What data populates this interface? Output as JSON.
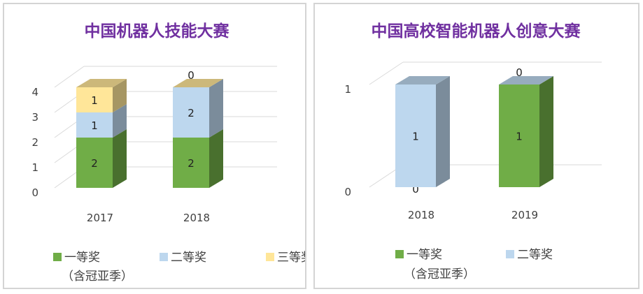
{
  "chart_data": [
    {
      "type": "bar",
      "stacked": true,
      "title": "中国机器人技能大赛",
      "categories": [
        "2017",
        "2018"
      ],
      "series": [
        {
          "name": "一等奖",
          "name_note": "（含冠亚季）",
          "color": "#70ad47",
          "values": [
            2,
            2
          ]
        },
        {
          "name": "二等奖",
          "color": "#bdd7ee",
          "values": [
            1,
            2
          ]
        },
        {
          "name": "三等奖",
          "color": "#ffe699",
          "values": [
            1,
            0
          ]
        }
      ],
      "yticks": [
        0,
        1,
        2,
        3,
        4
      ],
      "ylim": [
        0,
        4
      ],
      "grid": true,
      "legend": "bottom"
    },
    {
      "type": "bar",
      "stacked": true,
      "title": "中国高校智能机器人创意大赛",
      "categories": [
        "2018",
        "2019"
      ],
      "series": [
        {
          "name": "一等奖",
          "name_note": "（含冠亚季）",
          "color": "#70ad47",
          "values": [
            0,
            1
          ]
        },
        {
          "name": "二等奖",
          "color": "#bdd7ee",
          "values": [
            1,
            0
          ]
        }
      ],
      "yticks": [
        0,
        1
      ],
      "ylim": [
        0,
        1
      ],
      "grid": true,
      "legend": "bottom"
    }
  ]
}
